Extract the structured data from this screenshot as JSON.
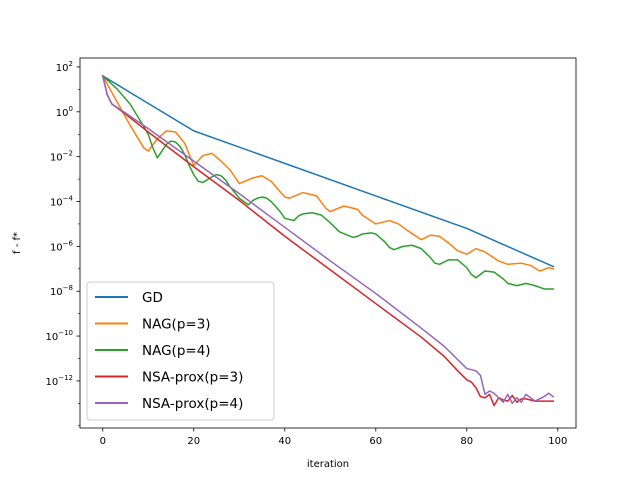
{
  "chart_data": {
    "type": "line",
    "title": "",
    "xlabel": "iteration",
    "ylabel": "f - f*",
    "yscale": "log",
    "xlim": [
      -5,
      104
    ],
    "ylim_exponent": [
      -14.1,
      2.4
    ],
    "xticks": [
      0,
      20,
      40,
      60,
      80,
      100
    ],
    "yticks": [
      {
        "exp": 2,
        "base": "10",
        "sup": "2"
      },
      {
        "exp": 0,
        "base": "10",
        "sup": "0"
      },
      {
        "exp": -2,
        "base": "10",
        "sup": "−2"
      },
      {
        "exp": -4,
        "base": "10",
        "sup": "−4"
      },
      {
        "exp": -6,
        "base": "10",
        "sup": "−6"
      },
      {
        "exp": -8,
        "base": "10",
        "sup": "−8"
      },
      {
        "exp": -10,
        "base": "10",
        "sup": "−10"
      },
      {
        "exp": -12,
        "base": "10",
        "sup": "−12"
      }
    ],
    "legend": "lower-left",
    "grid": false,
    "series": [
      {
        "name": "GD",
        "color": "#1f77b4",
        "x": [
          0,
          20,
          40,
          60,
          80,
          99
        ],
        "log10_y": [
          1.6,
          -0.85,
          -2.3,
          -3.75,
          -5.2,
          -6.9
        ]
      },
      {
        "name": "NAG(p=3)",
        "color": "#ff7f0e",
        "x": [
          0,
          3,
          6,
          9,
          10,
          12,
          14,
          16,
          18,
          20,
          22,
          24,
          26,
          28,
          30,
          33,
          35,
          37,
          40,
          41,
          44,
          47,
          49,
          50,
          53,
          56,
          57,
          60,
          63,
          65,
          67,
          70,
          72,
          74,
          76,
          78,
          80,
          82,
          84,
          87,
          89,
          92,
          94,
          96,
          98,
          99
        ],
        "log10_y": [
          1.6,
          0.5,
          -0.6,
          -1.6,
          -1.75,
          -1.2,
          -0.85,
          -0.9,
          -1.4,
          -2.4,
          -1.95,
          -1.85,
          -2.2,
          -2.6,
          -3.2,
          -2.95,
          -2.85,
          -3.1,
          -3.8,
          -3.85,
          -3.6,
          -3.75,
          -4.3,
          -4.45,
          -4.2,
          -4.35,
          -4.6,
          -5.0,
          -4.85,
          -5.0,
          -5.3,
          -5.7,
          -5.5,
          -5.55,
          -5.85,
          -6.2,
          -6.35,
          -6.1,
          -6.25,
          -6.65,
          -6.8,
          -6.75,
          -6.85,
          -7.1,
          -6.95,
          -7.0
        ]
      },
      {
        "name": "NAG(p=4)",
        "color": "#2ca02c",
        "x": [
          0,
          3,
          6,
          9,
          10,
          11,
          12,
          13,
          14,
          15,
          16,
          17,
          18,
          19,
          20,
          21,
          22,
          24,
          25,
          26,
          27,
          28,
          30,
          32,
          33,
          34,
          35,
          36,
          37,
          39,
          40,
          42,
          43,
          44,
          46,
          48,
          50,
          52,
          55,
          56,
          57,
          59,
          60,
          62,
          63,
          64,
          66,
          68,
          70,
          72,
          73,
          74,
          76,
          78,
          80,
          81,
          82,
          84,
          86,
          88,
          89,
          91,
          93,
          95,
          97,
          99
        ],
        "log10_y": [
          1.6,
          1.05,
          0.35,
          -0.65,
          -1.0,
          -1.6,
          -2.05,
          -1.75,
          -1.45,
          -1.3,
          -1.35,
          -1.55,
          -1.9,
          -2.4,
          -2.8,
          -3.1,
          -3.15,
          -2.9,
          -2.8,
          -2.85,
          -3.05,
          -3.35,
          -3.85,
          -4.15,
          -3.95,
          -3.85,
          -3.8,
          -3.85,
          -4.0,
          -4.45,
          -4.75,
          -4.85,
          -4.65,
          -4.55,
          -4.5,
          -4.6,
          -4.95,
          -5.35,
          -5.6,
          -5.55,
          -5.45,
          -5.4,
          -5.45,
          -5.8,
          -6.05,
          -6.15,
          -6.0,
          -5.95,
          -6.1,
          -6.5,
          -6.75,
          -6.8,
          -6.6,
          -6.6,
          -6.95,
          -7.25,
          -7.4,
          -7.1,
          -7.15,
          -7.45,
          -7.65,
          -7.75,
          -7.65,
          -7.75,
          -7.9,
          -7.9
        ]
      },
      {
        "name": "NSA-prox(p=3)",
        "color": "#d62728",
        "x": [
          0,
          1,
          2,
          5,
          10,
          20,
          30,
          40,
          50,
          60,
          70,
          75,
          78,
          80,
          81,
          82,
          83,
          84,
          85,
          86,
          87,
          88,
          89,
          90,
          91,
          92,
          93,
          95,
          97,
          99
        ],
        "log10_y": [
          1.6,
          0.75,
          0.35,
          -0.1,
          -0.9,
          -2.45,
          -3.95,
          -5.55,
          -7.05,
          -8.55,
          -10.05,
          -10.9,
          -11.55,
          -11.95,
          -12.05,
          -12.3,
          -12.7,
          -12.75,
          -12.6,
          -13.1,
          -12.75,
          -12.85,
          -12.9,
          -12.65,
          -12.95,
          -12.8,
          -12.8,
          -12.9,
          -12.9,
          -12.9
        ]
      },
      {
        "name": "NSA-prox(p=4)",
        "color": "#9467bd",
        "x": [
          0,
          1,
          2,
          5,
          10,
          20,
          30,
          40,
          50,
          60,
          70,
          75,
          78,
          80,
          82,
          83,
          84,
          85,
          86,
          87,
          88,
          89,
          90,
          91,
          92,
          93,
          95,
          97,
          98,
          99
        ],
        "log10_y": [
          1.6,
          0.75,
          0.35,
          -0.05,
          -0.75,
          -2.2,
          -3.65,
          -5.15,
          -6.65,
          -8.1,
          -9.65,
          -10.45,
          -11.05,
          -11.45,
          -11.55,
          -11.75,
          -12.6,
          -12.45,
          -12.55,
          -12.75,
          -12.95,
          -12.6,
          -13.0,
          -12.75,
          -12.95,
          -12.6,
          -12.9,
          -12.7,
          -12.55,
          -12.7
        ]
      }
    ]
  }
}
